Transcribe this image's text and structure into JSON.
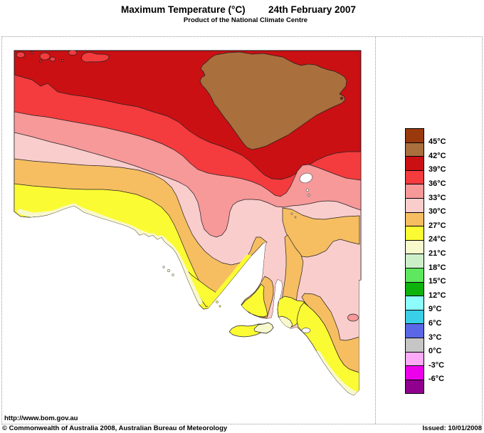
{
  "header": {
    "title": "Maximum Temperature (°C)",
    "date": "24th February 2007",
    "subtitle": "Product of the National Climate Centre"
  },
  "map_panel": {
    "url": "http://www.bom.gov.au"
  },
  "legend": {
    "bands": [
      {
        "label": "45°C",
        "color": "#9A3A0C"
      },
      {
        "label": "42°C",
        "color": "#A96F3D"
      },
      {
        "label": "39°C",
        "color": "#CA1013"
      },
      {
        "label": "36°C",
        "color": "#F43B3D"
      },
      {
        "label": "33°C",
        "color": "#F79899"
      },
      {
        "label": "30°C",
        "color": "#FACDCD"
      },
      {
        "label": "27°C",
        "color": "#F6BE61"
      },
      {
        "label": "24°C",
        "color": "#FBFB33"
      },
      {
        "label": "21°C",
        "color": "#F8F8CD"
      },
      {
        "label": "18°C",
        "color": "#CCEFCA"
      },
      {
        "label": "15°C",
        "color": "#5FE75F"
      },
      {
        "label": "12°C",
        "color": "#0DB20D"
      },
      {
        "label": "9°C",
        "color": "#8CFCFC"
      },
      {
        "label": "6°C",
        "color": "#39CFE6"
      },
      {
        "label": "3°C",
        "color": "#5A68E8"
      },
      {
        "label": "0°C",
        "color": "#C6C6C6"
      },
      {
        "label": "-3°C",
        "color": "#FFAAF8"
      },
      {
        "label": "-6°C",
        "color": "#EC00EC"
      },
      {
        "label": "",
        "color": "#90008E"
      }
    ]
  },
  "footer": {
    "copyright": "© Commonwealth of Australia 2008, Australian Bureau of Meteorology",
    "issued": "Issued: 10/01/2008"
  }
}
